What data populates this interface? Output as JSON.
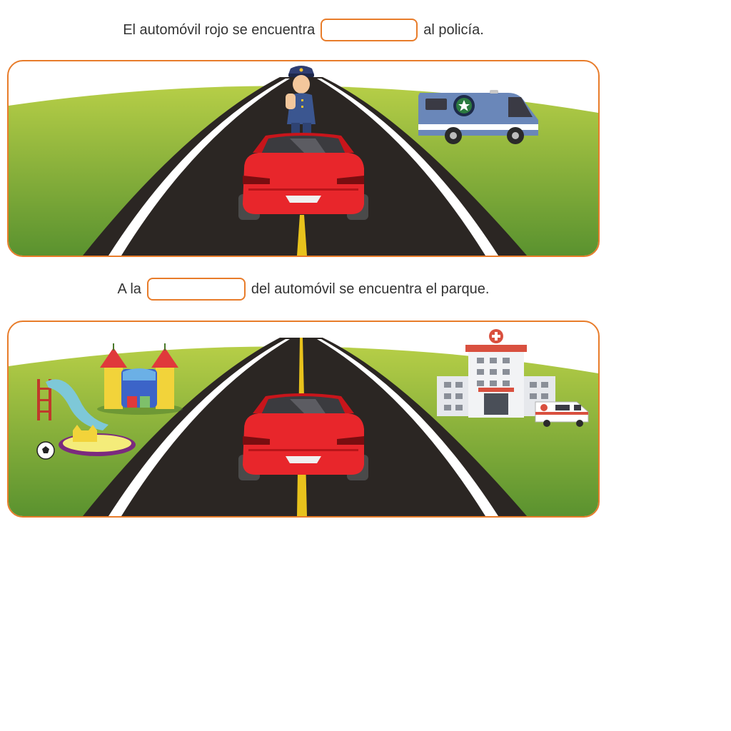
{
  "exercise_1": {
    "text_before": "El automóvil rojo se encuentra",
    "answer_value": "",
    "text_after": "al policía."
  },
  "exercise_2": {
    "text_before": "A la",
    "answer_value": "",
    "text_after": "del automóvil se encuentra el parque."
  },
  "colors": {
    "accent": "#e87c2a",
    "grass_top": "#b4cc45",
    "grass_bottom": "#58902e",
    "road": "#2b2623",
    "car": "#e8262b",
    "center_line": "#e8c21c"
  }
}
